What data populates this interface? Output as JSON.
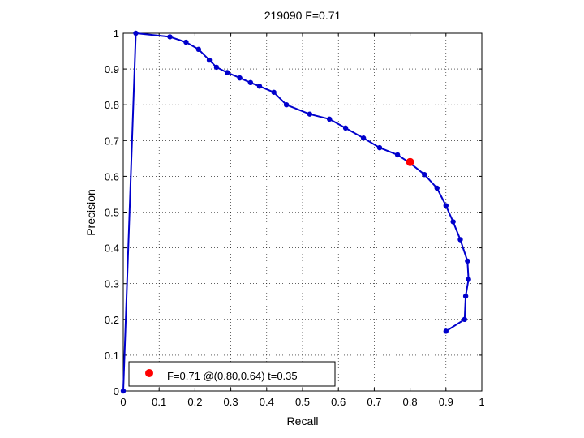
{
  "chart_data": {
    "type": "line",
    "title": "219090 F=0.71",
    "xlabel": "Recall",
    "ylabel": "Precision",
    "xlim": [
      0,
      1
    ],
    "ylim": [
      0,
      1
    ],
    "grid": true,
    "xticks": [
      "0",
      "0.1",
      "0.2",
      "0.3",
      "0.4",
      "0.5",
      "0.6",
      "0.7",
      "0.8",
      "0.9",
      "1"
    ],
    "yticks": [
      "0",
      "0.1",
      "0.2",
      "0.3",
      "0.4",
      "0.5",
      "0.6",
      "0.7",
      "0.8",
      "0.9",
      "1"
    ],
    "series": [
      {
        "color": "#0000cc",
        "points": [
          [
            0.0,
            0.0
          ],
          [
            0.035,
            1.0
          ],
          [
            0.13,
            0.99
          ],
          [
            0.175,
            0.975
          ],
          [
            0.21,
            0.955
          ],
          [
            0.24,
            0.925
          ],
          [
            0.26,
            0.905
          ],
          [
            0.29,
            0.89
          ],
          [
            0.325,
            0.875
          ],
          [
            0.355,
            0.862
          ],
          [
            0.38,
            0.852
          ],
          [
            0.42,
            0.835
          ],
          [
            0.455,
            0.8
          ],
          [
            0.52,
            0.774
          ],
          [
            0.575,
            0.76
          ],
          [
            0.62,
            0.735
          ],
          [
            0.67,
            0.707
          ],
          [
            0.715,
            0.68
          ],
          [
            0.765,
            0.66
          ],
          [
            0.8,
            0.637
          ],
          [
            0.84,
            0.605
          ],
          [
            0.875,
            0.567
          ],
          [
            0.9,
            0.518
          ],
          [
            0.92,
            0.473
          ],
          [
            0.94,
            0.423
          ],
          [
            0.96,
            0.363
          ],
          [
            0.963,
            0.312
          ],
          [
            0.955,
            0.265
          ],
          [
            0.952,
            0.2
          ],
          [
            0.9,
            0.167
          ]
        ]
      }
    ],
    "highlight": {
      "recall": 0.8,
      "precision": 0.64,
      "color": "#ff0000"
    },
    "legend": {
      "text": "F=0.71 @(0.80,0.64) t=0.35",
      "position": "bottom-left"
    }
  }
}
